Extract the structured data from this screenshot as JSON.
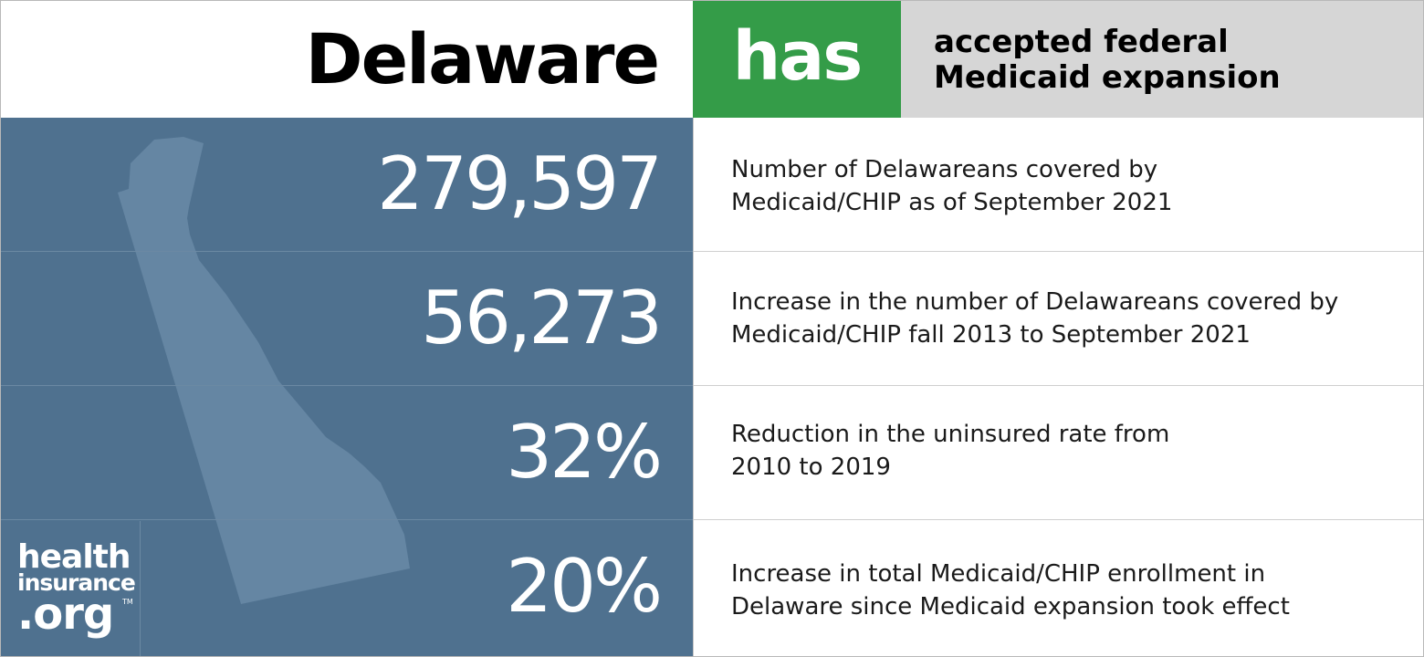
{
  "header": {
    "state": "Delaware",
    "status": "has",
    "status_line1": "accepted federal",
    "status_line2": "Medicaid expansion",
    "status_color": "#349c48"
  },
  "stats": [
    {
      "value": "279,597",
      "line1": "Number of Delawareans covered by",
      "line2": "Medicaid/CHIP as of September 2021"
    },
    {
      "value": "56,273",
      "line1": "Increase in the number of Delawareans covered by",
      "line2": "Medicaid/CHIP fall 2013 to September 2021"
    },
    {
      "value": "32%",
      "line1": "Reduction in the uninsured rate from",
      "line2": "2010 to 2019"
    },
    {
      "value": "20%",
      "line1": "Increase in total Medicaid/CHIP enrollment in",
      "line2": "Delaware since Medicaid expansion took effect"
    }
  ],
  "logo": {
    "line1": "health",
    "line2": "insurance",
    "line3": ".org",
    "tm": "TM"
  },
  "colors": {
    "panel_blue": "#4f718f",
    "state_shape": "#6586a3",
    "status_gray": "#d6d6d6"
  }
}
